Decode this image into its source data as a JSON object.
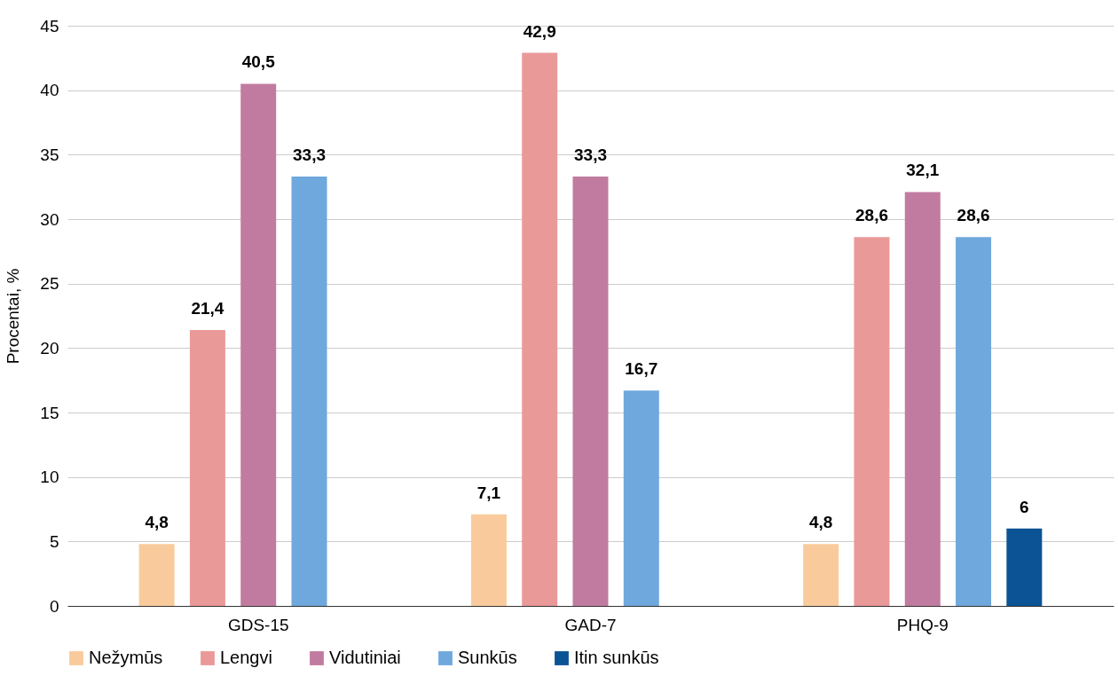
{
  "chart_data": {
    "type": "bar",
    "ylabel": "Procentai, %",
    "categories": [
      "GDS-15",
      "GAD-7",
      "PHQ-9"
    ],
    "series": [
      {
        "name": "Nežymūs",
        "color": "#f9cb9c",
        "values": [
          4.8,
          7.1,
          4.8
        ],
        "value_labels": [
          "4,8",
          "7,1",
          "4,8"
        ]
      },
      {
        "name": "Lengvi",
        "color": "#ea9999",
        "values": [
          21.4,
          42.9,
          28.6
        ],
        "value_labels": [
          "21,4",
          "42,9",
          "28,6"
        ]
      },
      {
        "name": "Vidutiniai",
        "color": "#c27ba0",
        "values": [
          40.5,
          33.3,
          32.1
        ],
        "value_labels": [
          "40,5",
          "33,3",
          "32,1"
        ]
      },
      {
        "name": "Sunkūs",
        "color": "#6fa8dc",
        "values": [
          33.3,
          16.7,
          28.6
        ],
        "value_labels": [
          "33,3",
          "16,7",
          "28,6"
        ]
      },
      {
        "name": "Itin sunkūs",
        "color": "#0b5394",
        "values": [
          null,
          null,
          6
        ],
        "value_labels": [
          null,
          null,
          "6"
        ]
      }
    ],
    "ylim": [
      0,
      45
    ],
    "yticks": [
      0,
      5,
      10,
      15,
      20,
      25,
      30,
      35,
      40,
      45
    ],
    "grid": "y",
    "legend": "bottom"
  }
}
